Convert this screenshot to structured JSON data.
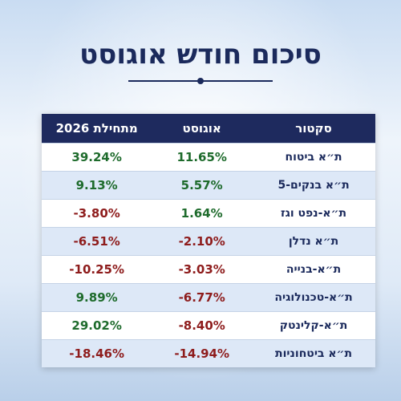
{
  "header": {
    "title": "סיכום חודש אוגוסט"
  },
  "table": {
    "columns": [
      "סקטור",
      "אוגוסט",
      "מתחילת 2026"
    ],
    "rows": [
      [
        "ת״א ביטוח",
        "11.65%",
        "39.24%"
      ],
      [
        "ת״א בנקים-5",
        "5.57%",
        "9.13%"
      ],
      [
        "ת״א-נפט וגז",
        "1.64%",
        "-3.80%"
      ],
      [
        "ת״א נדלן",
        "-2.10%",
        "-6.51%"
      ],
      [
        "ת״א-בנייה",
        "-3.03%",
        "-10.25%"
      ],
      [
        "ת״א-טכנולוגיה",
        "-6.77%",
        "9.89%"
      ],
      [
        "ת״א-קלינטק",
        "-8.40%",
        "29.02%"
      ],
      [
        "ת״א ביטחוניות",
        "-14.94%",
        "-18.46%"
      ]
    ]
  }
}
